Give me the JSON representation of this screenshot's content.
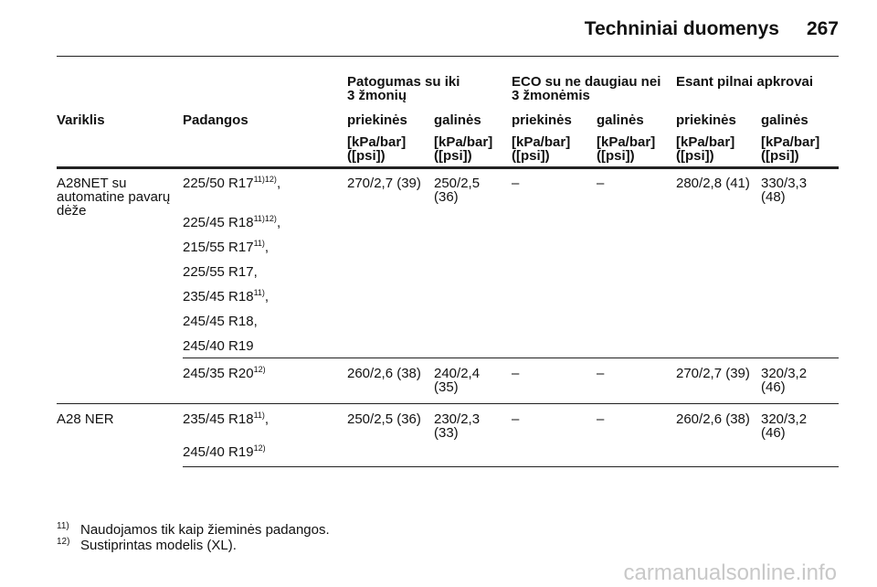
{
  "header": {
    "title": "Techniniai duomenys",
    "page": "267"
  },
  "table": {
    "group_headers": [
      [
        "Patogumas su iki",
        "3 žmonių"
      ],
      [
        "ECO su ne daugiau nei",
        "3 žmonėmis"
      ],
      [
        "Esant pilnai apkrovai"
      ]
    ],
    "column_headers": [
      "Variklis",
      "Padangos",
      "priekinės",
      "galinės",
      "priekinės",
      "galinės",
      "priekinės",
      "galinės"
    ],
    "units": [
      [
        "[kPa/bar]",
        "([psi])"
      ],
      [
        "[kPa/bar]",
        "([psi])"
      ],
      [
        "[kPa/bar]",
        "([psi])"
      ],
      [
        "[kPa/bar]",
        "([psi])"
      ],
      [
        "[kPa/bar]",
        "([psi])"
      ],
      [
        "[kPa/bar]",
        "([psi])"
      ]
    ],
    "rows": [
      {
        "engine": [
          "A28NET su",
          "automatine pavarų",
          "dėže"
        ],
        "tires": [
          {
            "text": "225/50 R17",
            "sup": "11)12)",
            "trail": ","
          },
          {
            "text": "225/45 R18",
            "sup": "11)12)",
            "trail": ","
          },
          {
            "text": "215/55 R17",
            "sup": "11)",
            "trail": ","
          },
          {
            "text": "225/55 R17,"
          },
          {
            "text": "235/45 R18",
            "sup": "11)",
            "trail": ","
          },
          {
            "text": "245/45 R18,"
          },
          {
            "text": "245/40 R19"
          }
        ],
        "values": [
          [
            "270/2,7 (39)"
          ],
          [
            "250/2,5",
            "(36)"
          ],
          [
            "–"
          ],
          [
            "–"
          ],
          [
            "280/2,8 (41)"
          ],
          [
            "330/3,3",
            "(48)"
          ]
        ]
      },
      {
        "tires": [
          {
            "text": "245/35 R20",
            "sup": "12)"
          }
        ],
        "values": [
          [
            "260/2,6 (38)"
          ],
          [
            "240/2,4",
            "(35)"
          ],
          [
            "–"
          ],
          [
            "–"
          ],
          [
            "270/2,7 (39)"
          ],
          [
            "320/3,2",
            "(46)"
          ]
        ]
      },
      {
        "engine": [
          "A28 NER"
        ],
        "tires": [
          {
            "text": "235/45 R18",
            "sup": "11)",
            "trail": ","
          },
          {
            "text": "245/40 R19",
            "sup": "12)"
          }
        ],
        "values": [
          [
            "250/2,5 (36)"
          ],
          [
            "230/2,3",
            "(33)"
          ],
          [
            "–"
          ],
          [
            "–"
          ],
          [
            "260/2,6 (38)"
          ],
          [
            "320/3,2",
            "(46)"
          ]
        ]
      }
    ]
  },
  "footnotes": [
    {
      "mark": "11)",
      "text": "Naudojamos tik kaip žieminės padangos."
    },
    {
      "mark": "12)",
      "text": "Sustiprintas modelis (XL)."
    }
  ],
  "watermark": "carmanualsonline.info"
}
